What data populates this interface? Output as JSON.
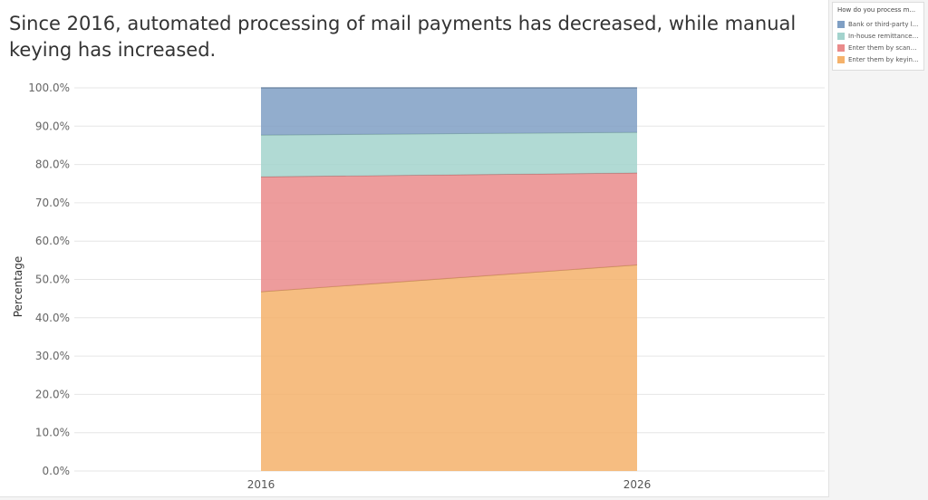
{
  "chart_data": {
    "type": "area",
    "stacked": "percent",
    "title": "Since 2016, automated processing of mail payments has decreased, while manual keying has increased.",
    "ylabel": "Percentage",
    "xlabel": "",
    "x": [
      "2016",
      "2026"
    ],
    "ylim": [
      0,
      100
    ],
    "yticks": [
      "0.0%",
      "10.0%",
      "20.0%",
      "30.0%",
      "40.0%",
      "50.0%",
      "60.0%",
      "70.0%",
      "80.0%",
      "90.0%",
      "100.0%"
    ],
    "grid": true,
    "legend": {
      "title": "How do you process m...",
      "position": "right"
    },
    "series": [
      {
        "name": "Enter them by keyin...",
        "values": [
          46.8,
          53.8
        ],
        "color": "#f5b26b"
      },
      {
        "name": "Enter them by scanni...",
        "values": [
          30.0,
          24.0
        ],
        "color": "#ea8b8b"
      },
      {
        "name": "In-house remittance ...",
        "values": [
          10.9,
          10.6
        ],
        "color": "#a3d3cd"
      },
      {
        "name": "Bank or third-party l...",
        "values": [
          12.3,
          11.6
        ],
        "color": "#7f9fc4"
      }
    ]
  }
}
